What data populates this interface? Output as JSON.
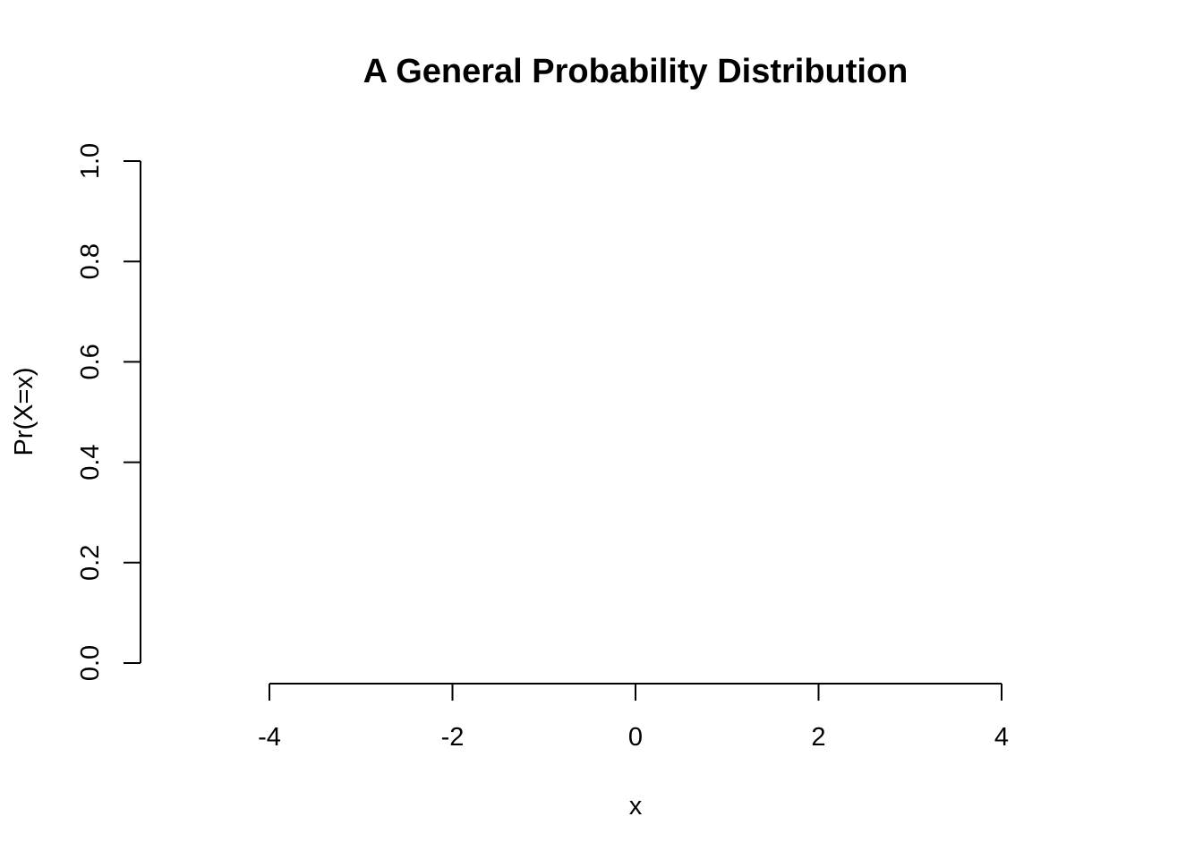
{
  "chart_data": {
    "type": "scatter",
    "title": "A General Probability Distribution",
    "xlabel": "x",
    "ylabel": "Pr(X=x)",
    "x_ticks": [
      "-4",
      "-2",
      "0",
      "2",
      "4"
    ],
    "x_tick_values": [
      -4,
      -2,
      0,
      2,
      4
    ],
    "y_ticks": [
      "0.0",
      "0.2",
      "0.4",
      "0.6",
      "0.8",
      "1.0"
    ],
    "y_tick_values": [
      0.0,
      0.2,
      0.4,
      0.6,
      0.8,
      1.0
    ],
    "xlim": [
      -4,
      4
    ],
    "ylim": [
      0,
      1
    ],
    "grid": false,
    "series": [],
    "colors": {
      "axis": "#000000",
      "background": "#ffffff"
    }
  }
}
